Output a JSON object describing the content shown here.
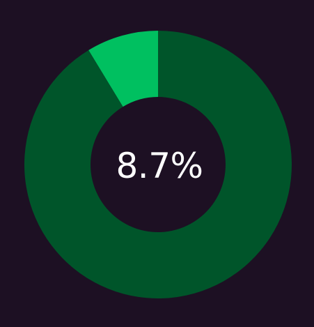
{
  "chart_data": {
    "type": "pie",
    "donut": true,
    "center_label": "8.7%",
    "slices": [
      {
        "value": 8.7,
        "color": "#00c060"
      },
      {
        "value": 91.3,
        "color": "#00552a"
      }
    ],
    "background": "#1d1023"
  }
}
